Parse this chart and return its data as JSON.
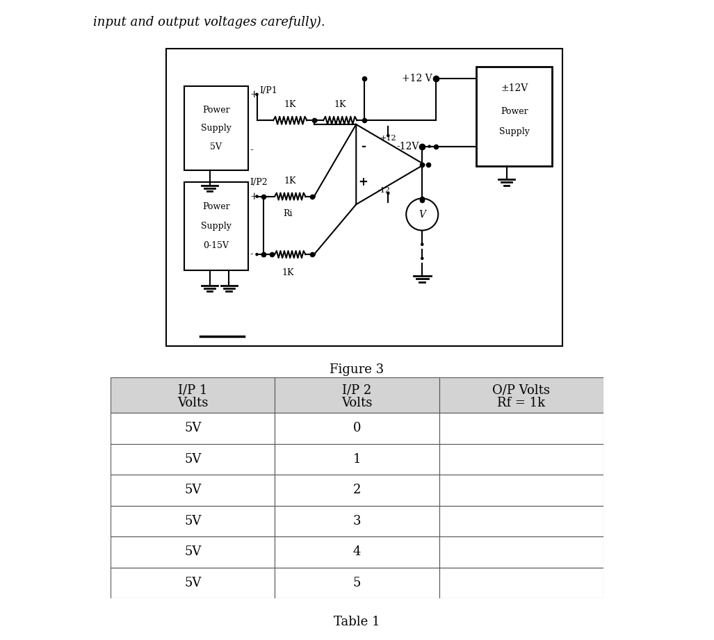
{
  "title_text": "input and output voltages carefully).",
  "figure_caption": "Figure 3",
  "table_caption": "Table 1",
  "col1_header_line1": "I/P 1",
  "col1_header_line2": "Volts",
  "col2_header_line1": "I/P 2",
  "col2_header_line2": "Volts",
  "col3_header_line1": "O/P Volts",
  "col3_header_line2": "Rf = 1k",
  "table_data": [
    [
      "5V",
      "0",
      ""
    ],
    [
      "5V",
      "1",
      ""
    ],
    [
      "5V",
      "2",
      ""
    ],
    [
      "5V",
      "3",
      ""
    ],
    [
      "5V",
      "4",
      ""
    ],
    [
      "5V",
      "5",
      ""
    ]
  ],
  "header_bg": "#d3d3d3",
  "table_bg": "#ffffff",
  "text_color": "#000000",
  "bg_color": "#ffffff",
  "border_color": "#555555"
}
